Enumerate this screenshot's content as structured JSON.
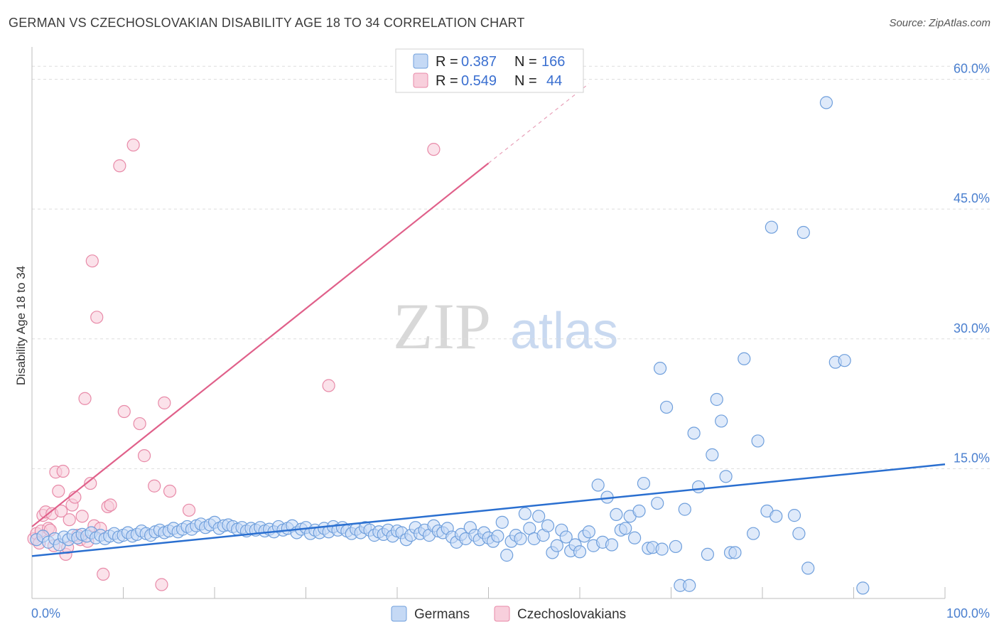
{
  "title": "GERMAN VS CZECHOSLOVAKIAN DISABILITY AGE 18 TO 34 CORRELATION CHART",
  "source": "Source: ZipAtlas.com",
  "watermark": {
    "zip": "ZIP",
    "atlas": "atlas"
  },
  "legend": {
    "rows": [
      {
        "r_label": "R =",
        "r_value": "0.387",
        "n_label": "N =",
        "n_value": "166"
      },
      {
        "r_label": "R =",
        "r_value": "0.549",
        "n_label": "N =",
        "n_value": "44"
      }
    ]
  },
  "bottom_legend": [
    "Germans",
    "Czechoslovakians"
  ],
  "colors": {
    "germans_fill": "#c5d9f5",
    "germans_stroke": "#6f9fdc",
    "germans_line": "#2a6fd0",
    "czech_fill": "#f8cfdc",
    "czech_stroke": "#e88aa8",
    "czech_line": "#e0608a",
    "tick_label": "#4a7fcf",
    "grid": "#dddddd"
  },
  "chart_data": {
    "type": "scatter",
    "title": "GERMAN VS CZECHOSLOVAKIAN DISABILITY AGE 18 TO 34 CORRELATION CHART",
    "xlabel": "",
    "ylabel": "Disability Age 18 to 34",
    "xlim": [
      0,
      100
    ],
    "ylim": [
      0,
      63
    ],
    "x_tick_labels": [
      "0.0%",
      "100.0%"
    ],
    "y_ticks": [
      15,
      30,
      45,
      60
    ],
    "y_tick_labels": [
      "15.0%",
      "30.0%",
      "45.0%",
      "60.0%"
    ],
    "grid": true,
    "series": [
      {
        "name": "Germans",
        "R": 0.387,
        "N": 166,
        "trend": {
          "x": [
            0,
            100
          ],
          "y": [
            4.9,
            15.5
          ]
        },
        "points": [
          [
            0.5,
            6.8
          ],
          [
            1.2,
            7.2
          ],
          [
            1.8,
            6.5
          ],
          [
            2.5,
            6.9
          ],
          [
            3.0,
            6.2
          ],
          [
            3.5,
            7.1
          ],
          [
            4.0,
            6.8
          ],
          [
            4.5,
            7.3
          ],
          [
            5.0,
            7.0
          ],
          [
            5.5,
            7.4
          ],
          [
            6.0,
            7.2
          ],
          [
            6.5,
            7.6
          ],
          [
            7.0,
            7.0
          ],
          [
            7.5,
            7.3
          ],
          [
            8.0,
            6.9
          ],
          [
            8.5,
            7.2
          ],
          [
            9.0,
            7.5
          ],
          [
            9.5,
            7.1
          ],
          [
            10.0,
            7.3
          ],
          [
            10.5,
            7.6
          ],
          [
            11.0,
            7.2
          ],
          [
            11.5,
            7.4
          ],
          [
            12.0,
            7.8
          ],
          [
            12.5,
            7.5
          ],
          [
            13.0,
            7.3
          ],
          [
            13.5,
            7.7
          ],
          [
            14.0,
            7.9
          ],
          [
            14.5,
            7.6
          ],
          [
            15.0,
            7.8
          ],
          [
            15.5,
            8.1
          ],
          [
            16.0,
            7.7
          ],
          [
            16.5,
            8.0
          ],
          [
            17.0,
            8.3
          ],
          [
            17.5,
            8.0
          ],
          [
            18.0,
            8.4
          ],
          [
            18.5,
            8.6
          ],
          [
            19.0,
            8.2
          ],
          [
            19.5,
            8.5
          ],
          [
            20.0,
            8.8
          ],
          [
            20.5,
            8.1
          ],
          [
            21.0,
            8.4
          ],
          [
            21.5,
            8.5
          ],
          [
            22.0,
            8.3
          ],
          [
            22.5,
            8.0
          ],
          [
            23.0,
            8.2
          ],
          [
            23.5,
            7.8
          ],
          [
            24.0,
            8.1
          ],
          [
            24.5,
            7.9
          ],
          [
            25.0,
            8.2
          ],
          [
            25.5,
            7.8
          ],
          [
            26.0,
            8.0
          ],
          [
            26.5,
            7.7
          ],
          [
            27.0,
            8.3
          ],
          [
            27.5,
            7.9
          ],
          [
            28.0,
            8.1
          ],
          [
            28.5,
            8.4
          ],
          [
            29.0,
            7.6
          ],
          [
            29.5,
            8.0
          ],
          [
            30.0,
            8.2
          ],
          [
            30.5,
            7.5
          ],
          [
            31.0,
            7.9
          ],
          [
            31.5,
            7.6
          ],
          [
            32.0,
            8.1
          ],
          [
            32.5,
            7.7
          ],
          [
            33.0,
            8.3
          ],
          [
            33.5,
            7.9
          ],
          [
            34.0,
            8.2
          ],
          [
            34.5,
            7.8
          ],
          [
            35.0,
            7.5
          ],
          [
            35.5,
            8.0
          ],
          [
            36.0,
            7.6
          ],
          [
            36.5,
            8.2
          ],
          [
            37.0,
            7.9
          ],
          [
            37.5,
            7.3
          ],
          [
            38.0,
            7.7
          ],
          [
            38.5,
            7.4
          ],
          [
            39.0,
            7.9
          ],
          [
            39.5,
            7.2
          ],
          [
            40.0,
            7.8
          ],
          [
            40.5,
            7.6
          ],
          [
            41.0,
            6.8
          ],
          [
            41.5,
            7.3
          ],
          [
            42.0,
            8.2
          ],
          [
            42.5,
            7.5
          ],
          [
            43.0,
            7.9
          ],
          [
            43.5,
            7.3
          ],
          [
            44.0,
            8.4
          ],
          [
            44.5,
            7.8
          ],
          [
            45.0,
            7.6
          ],
          [
            45.5,
            8.1
          ],
          [
            46.0,
            7.1
          ],
          [
            46.5,
            6.5
          ],
          [
            47.0,
            7.4
          ],
          [
            47.5,
            6.9
          ],
          [
            48.0,
            8.2
          ],
          [
            48.5,
            7.3
          ],
          [
            49.0,
            6.8
          ],
          [
            49.5,
            7.6
          ],
          [
            50.0,
            7.0
          ],
          [
            50.5,
            6.6
          ],
          [
            51.0,
            7.2
          ],
          [
            51.5,
            8.8
          ],
          [
            52.0,
            5.0
          ],
          [
            52.5,
            6.6
          ],
          [
            53.0,
            7.3
          ],
          [
            53.5,
            6.9
          ],
          [
            54.0,
            9.8
          ],
          [
            54.5,
            8.1
          ],
          [
            55.0,
            6.9
          ],
          [
            55.5,
            9.5
          ],
          [
            56.0,
            7.3
          ],
          [
            56.5,
            8.4
          ],
          [
            57.0,
            5.3
          ],
          [
            57.5,
            6.1
          ],
          [
            58.0,
            7.9
          ],
          [
            58.5,
            7.1
          ],
          [
            59.0,
            5.5
          ],
          [
            59.5,
            6.2
          ],
          [
            60.0,
            5.4
          ],
          [
            60.5,
            7.2
          ],
          [
            61.0,
            7.7
          ],
          [
            61.5,
            6.1
          ],
          [
            62.0,
            13.1
          ],
          [
            62.5,
            6.5
          ],
          [
            63.0,
            11.7
          ],
          [
            63.5,
            6.2
          ],
          [
            64.0,
            9.7
          ],
          [
            64.5,
            7.9
          ],
          [
            65.0,
            8.1
          ],
          [
            65.5,
            9.5
          ],
          [
            66.0,
            7.0
          ],
          [
            66.5,
            10.1
          ],
          [
            67.0,
            13.3
          ],
          [
            67.5,
            5.8
          ],
          [
            68.0,
            5.9
          ],
          [
            68.5,
            11.0
          ],
          [
            69.0,
            5.7
          ],
          [
            69.5,
            22.1
          ],
          [
            70.5,
            6.0
          ],
          [
            71.0,
            1.5
          ],
          [
            71.5,
            10.3
          ],
          [
            72.0,
            1.5
          ],
          [
            72.5,
            19.1
          ],
          [
            73.0,
            12.9
          ],
          [
            74.0,
            5.1
          ],
          [
            74.5,
            16.6
          ],
          [
            75.0,
            23.0
          ],
          [
            75.5,
            20.5
          ],
          [
            76.5,
            5.3
          ],
          [
            76.0,
            14.1
          ],
          [
            77.0,
            5.3
          ],
          [
            78.0,
            27.7
          ],
          [
            79.0,
            7.5
          ],
          [
            79.5,
            18.2
          ],
          [
            80.5,
            10.1
          ],
          [
            81.0,
            42.9
          ],
          [
            81.5,
            9.5
          ],
          [
            83.5,
            9.6
          ],
          [
            84.0,
            7.5
          ],
          [
            84.5,
            42.3
          ],
          [
            85.0,
            3.5
          ],
          [
            87.0,
            57.3
          ],
          [
            88.0,
            27.3
          ],
          [
            89.0,
            27.5
          ],
          [
            91.0,
            1.2
          ],
          [
            68.8,
            26.6
          ]
        ]
      },
      {
        "name": "Czechoslovakians",
        "R": 0.549,
        "N": 44,
        "trend": {
          "x": [
            0,
            50
          ],
          "y": [
            8.3,
            50.3
          ]
        },
        "trend_dashed": {
          "x": [
            50,
            61
          ],
          "y": [
            50.3,
            59.5
          ]
        },
        "points": [
          [
            0.2,
            6.9
          ],
          [
            0.5,
            7.5
          ],
          [
            0.8,
            6.4
          ],
          [
            1.0,
            7.8
          ],
          [
            1.2,
            9.6
          ],
          [
            1.5,
            10.0
          ],
          [
            1.8,
            8.1
          ],
          [
            2.0,
            7.9
          ],
          [
            2.2,
            9.8
          ],
          [
            2.4,
            6.1
          ],
          [
            2.6,
            14.6
          ],
          [
            2.9,
            12.4
          ],
          [
            3.2,
            10.1
          ],
          [
            3.4,
            14.7
          ],
          [
            3.7,
            5.1
          ],
          [
            3.9,
            5.9
          ],
          [
            4.1,
            9.1
          ],
          [
            4.4,
            10.8
          ],
          [
            4.7,
            11.7
          ],
          [
            5.0,
            7.3
          ],
          [
            5.3,
            6.8
          ],
          [
            5.5,
            9.5
          ],
          [
            5.8,
            23.1
          ],
          [
            6.1,
            6.6
          ],
          [
            6.4,
            13.3
          ],
          [
            6.6,
            39.0
          ],
          [
            6.8,
            8.4
          ],
          [
            7.1,
            32.5
          ],
          [
            7.8,
            2.8
          ],
          [
            8.3,
            10.6
          ],
          [
            8.6,
            10.8
          ],
          [
            9.6,
            50.0
          ],
          [
            10.1,
            21.6
          ],
          [
            11.1,
            52.4
          ],
          [
            11.8,
            20.2
          ],
          [
            12.3,
            16.5
          ],
          [
            13.4,
            13.0
          ],
          [
            14.2,
            1.6
          ],
          [
            14.5,
            22.6
          ],
          [
            15.1,
            12.4
          ],
          [
            17.2,
            10.2
          ],
          [
            32.5,
            24.6
          ],
          [
            44.0,
            51.9
          ],
          [
            7.5,
            8.1
          ]
        ]
      }
    ]
  }
}
